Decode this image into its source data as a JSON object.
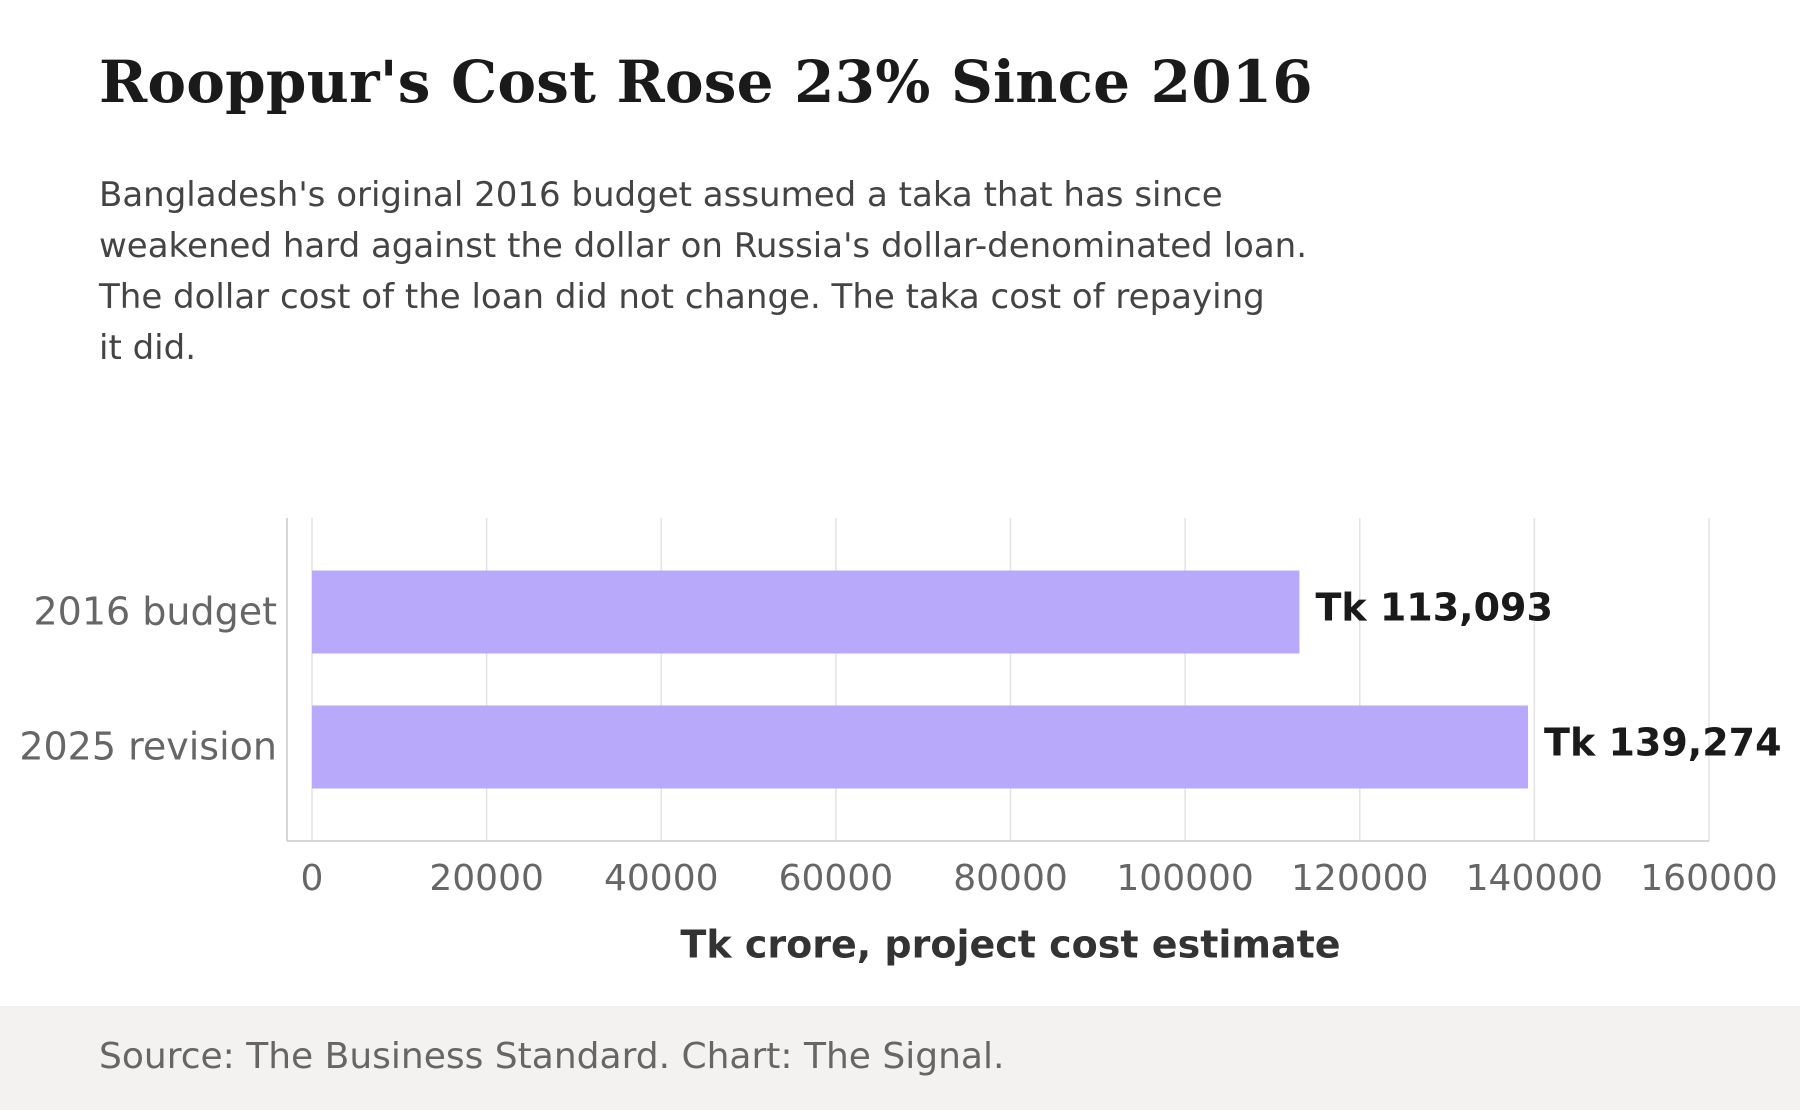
{
  "header": {
    "title": "Rooppur's Cost Rose 23% Since 2016",
    "subtitle_lines": [
      "Bangladesh's original 2016 budget assumed a taka that has since",
      "weakened hard against the dollar on Russia's dollar-denominated loan.",
      "The dollar cost of the loan did not change. The taka cost of repaying",
      "it did."
    ]
  },
  "footer": {
    "source": "Source: The Business Standard. Chart: The Signal."
  },
  "colors": {
    "bar": "#b8a9fb",
    "grid": "#e3e3e3",
    "axis": "#d6d6d6",
    "tick_text": "#666666",
    "value_text": "#1a1a1a",
    "xlabel_text": "#333333"
  },
  "chart_data": {
    "type": "bar",
    "orientation": "horizontal",
    "categories": [
      "2016 budget",
      "2025 revision"
    ],
    "values": [
      113093,
      139274
    ],
    "value_labels": [
      "Tk 113,093",
      "Tk 139,274"
    ],
    "xlabel": "Tk crore, project cost estimate",
    "xlim": [
      0,
      160000
    ],
    "xticks": [
      0,
      20000,
      40000,
      60000,
      80000,
      100000,
      120000,
      140000,
      160000
    ],
    "grid": true
  }
}
